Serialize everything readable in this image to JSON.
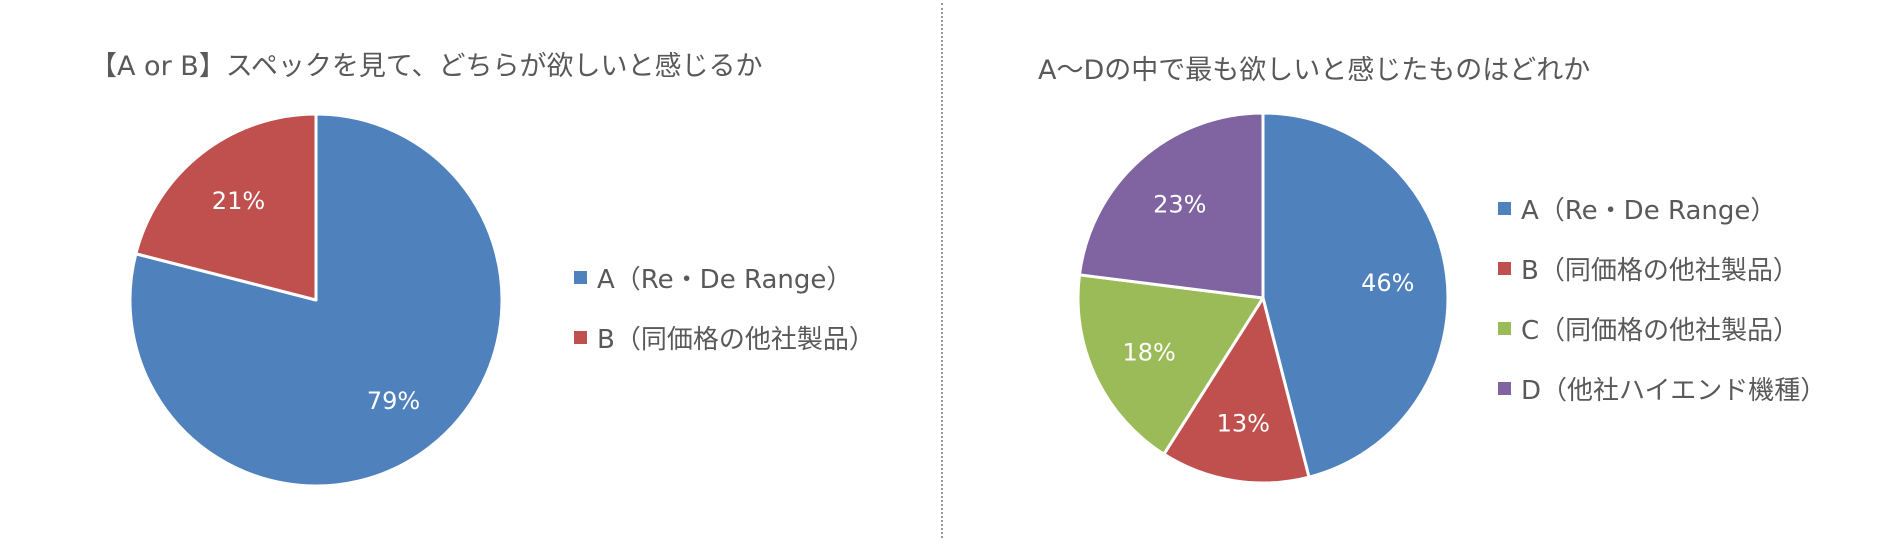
{
  "chart_data": [
    {
      "type": "pie",
      "title": "【A or B】スペックを見て、どちらが欲しいと感じるか",
      "categories": [
        "A（Re・De Range）",
        "B（同価格の他社製品）"
      ],
      "values": [
        79,
        21
      ],
      "labels": [
        "79%",
        "21%"
      ],
      "colors": [
        "#4F81BD",
        "#C0504D"
      ],
      "legend_position": "right",
      "start_angle_deg": 0,
      "direction": "clockwise"
    },
    {
      "type": "pie",
      "title": "A～Dの中で最も欲しいと感じたものはどれか",
      "categories": [
        "A（Re・De Range）",
        "B（同価格の他社製品）",
        "C（同価格の他社製品）",
        "D（他社ハイエンド機種）"
      ],
      "values": [
        46,
        13,
        18,
        23
      ],
      "labels": [
        "46%",
        "13%",
        "18%",
        "23%"
      ],
      "colors": [
        "#4F81BD",
        "#C0504D",
        "#9BBB59",
        "#8064A2"
      ],
      "legend_position": "right",
      "start_angle_deg": 0,
      "direction": "clockwise"
    }
  ],
  "left": {
    "title": "【A or B】スペックを見て、どちらが欲しいと感じるか",
    "legend": [
      {
        "label": "A（Re・De Range）",
        "color": "#4F81BD"
      },
      {
        "label": "B（同価格の他社製品）",
        "color": "#C0504D"
      }
    ]
  },
  "right": {
    "title": "A～Dの中で最も欲しいと感じたものはどれか",
    "legend": [
      {
        "label": "A（Re・De Range）",
        "color": "#4F81BD"
      },
      {
        "label": "B（同価格の他社製品）",
        "color": "#C0504D"
      },
      {
        "label": "C（同価格の他社製品）",
        "color": "#9BBB59"
      },
      {
        "label": "D（他社ハイエンド機種）",
        "color": "#8064A2"
      }
    ]
  }
}
